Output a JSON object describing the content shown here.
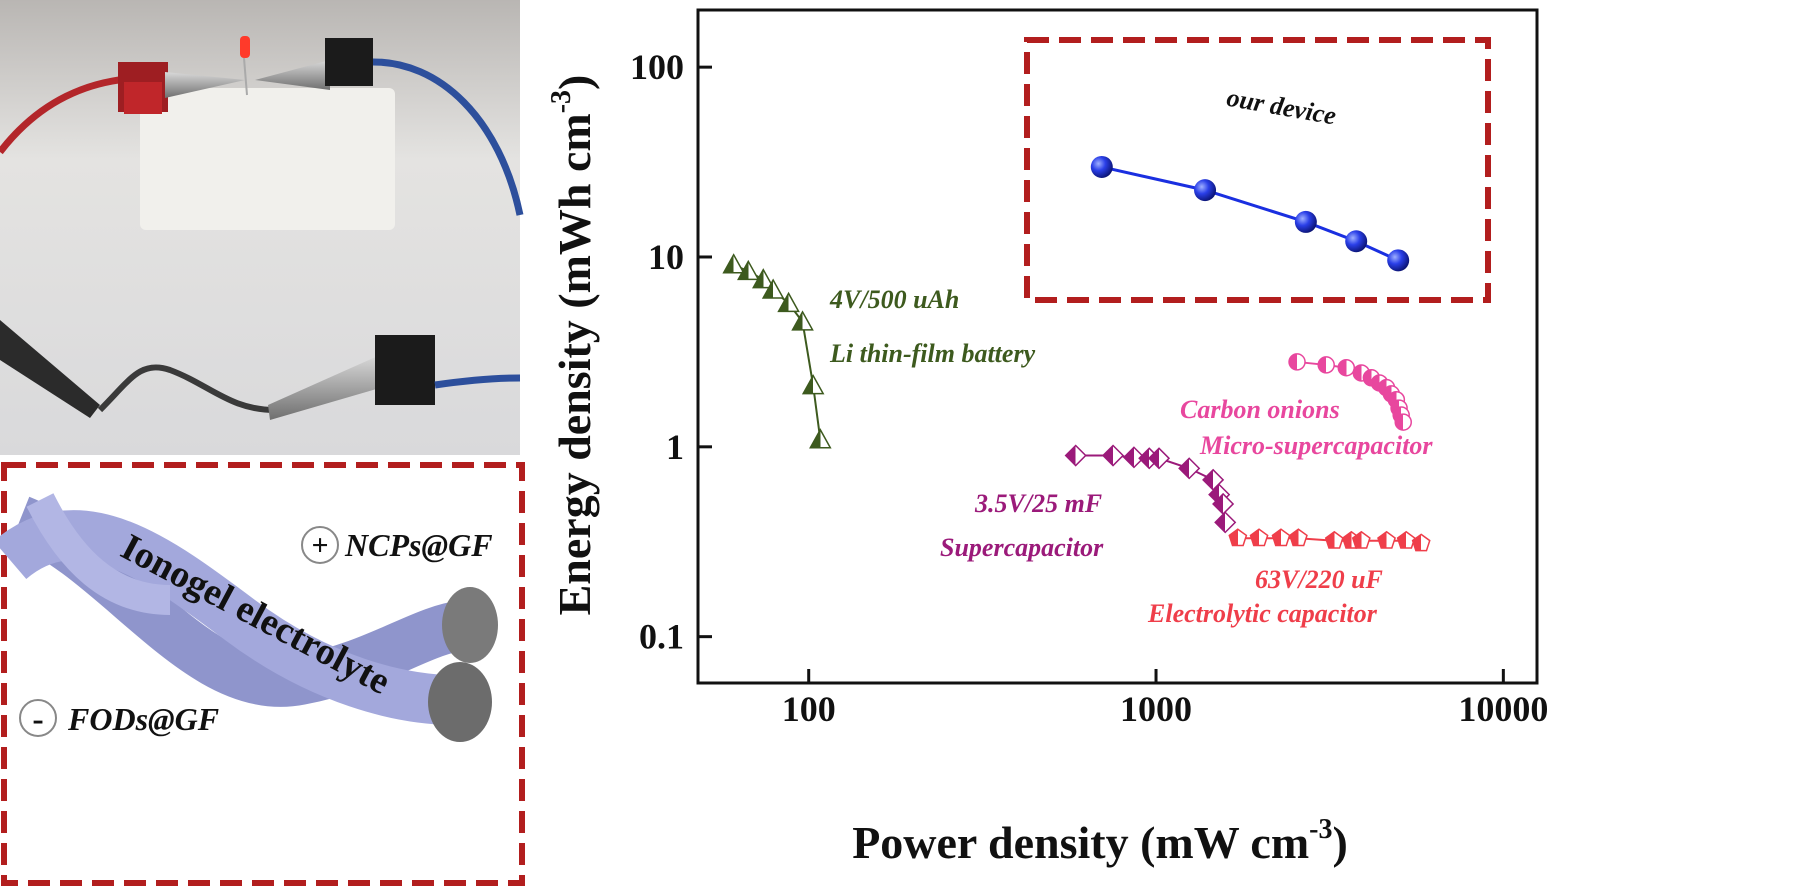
{
  "chart_data": {
    "type": "line",
    "xscale": "log",
    "yscale": "log",
    "xlabel": [
      "Power density (mW cm",
      "-3",
      ")"
    ],
    "ylabel": [
      "Energy density (mWh cm",
      "-3",
      ")"
    ],
    "xlim": [
      48,
      12500
    ],
    "ylim": [
      0.057,
      200
    ],
    "xticks": [
      100,
      1000,
      10000
    ],
    "yticks": [
      0.1,
      1,
      10,
      100
    ],
    "series": [
      {
        "color": "#3d5a1e",
        "marker": "triangle",
        "labels": [
          "4V/500 uAh",
          "Li thin-film battery"
        ],
        "x": [
          60.8,
          67,
          74,
          79,
          87.5,
          96,
          103,
          108
        ],
        "values": [
          9.1,
          8.4,
          7.6,
          6.7,
          5.7,
          4.55,
          2.1,
          1.09
        ]
      },
      {
        "color": "#9b1a7a",
        "marker": "diamond",
        "labels": [
          "3.5V/25 mF",
          "Supercapacitor"
        ],
        "x": [
          587,
          752,
          864,
          956,
          1020,
          1246,
          1460,
          1520,
          1560,
          1582
        ],
        "values": [
          0.9,
          0.9,
          0.88,
          0.87,
          0.87,
          0.77,
          0.67,
          0.56,
          0.5,
          0.4
        ]
      },
      {
        "color": "#e8479e",
        "marker": "circle",
        "labels": [
          "Carbon onions",
          "Micro-supercapacitor"
        ],
        "x": [
          2547,
          3090,
          3530,
          3900,
          4170,
          4400,
          4610,
          4760,
          4920,
          5010,
          5080,
          5150
        ],
        "values": [
          2.8,
          2.7,
          2.61,
          2.45,
          2.31,
          2.17,
          2.05,
          1.9,
          1.77,
          1.6,
          1.47,
          1.35
        ]
      },
      {
        "color": "#ef3e4a",
        "marker": "pentagon",
        "labels": [
          "63V/220 uF",
          "Electrolytic capacitor"
        ],
        "x": [
          1720,
          1980,
          2290,
          2570,
          3260,
          3650,
          3900,
          4610,
          5250,
          5800
        ],
        "values": [
          0.33,
          0.33,
          0.33,
          0.33,
          0.32,
          0.32,
          0.32,
          0.32,
          0.32,
          0.31
        ]
      },
      {
        "color": "#1a2fe0",
        "marker": "sphere",
        "labels": [
          "our device"
        ],
        "x": [
          698,
          1384,
          2700,
          3770,
          4980
        ],
        "values": [
          29.8,
          22.5,
          15.3,
          12.1,
          9.6
        ]
      }
    ]
  },
  "diagram": {
    "label": "Ionogel electrolyte",
    "positive": {
      "sign": "+",
      "name": "NCPs@GF"
    },
    "negative": {
      "sign": "-",
      "name": "FODs@GF"
    }
  }
}
